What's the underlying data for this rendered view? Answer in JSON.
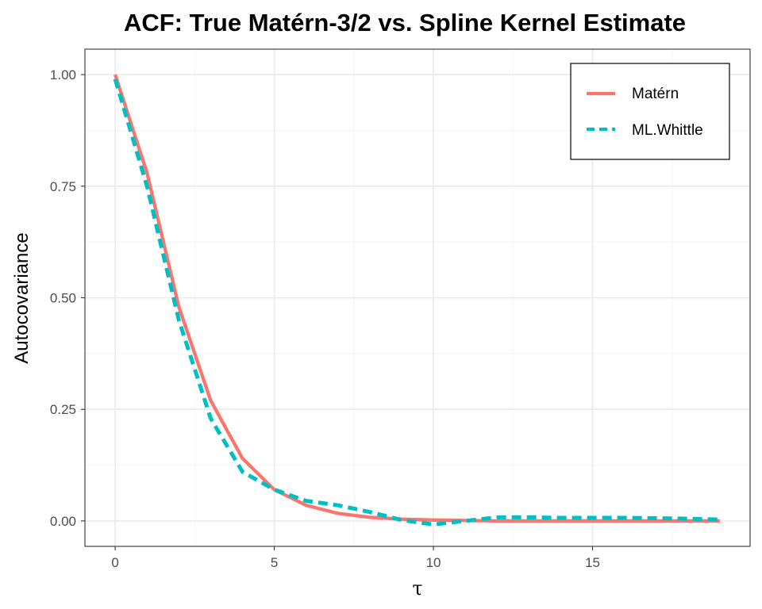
{
  "colors": {
    "matern": "#f8766d",
    "whittle": "#00bfc4",
    "grid_major": "#ebebeb",
    "grid_minor": "#f5f5f5",
    "panel_border": "#333333"
  },
  "chart_data": {
    "type": "line",
    "title": "ACF: True Matérn-3/2 vs. Spline Kernel Estimate",
    "xlabel": "τ",
    "ylabel": "Autocovariance",
    "xlim": [
      -0.95,
      19.95
    ],
    "ylim": [
      -0.057,
      1.057
    ],
    "x_ticks": [
      0,
      5,
      10,
      15
    ],
    "x_tick_labels": [
      "0",
      "5",
      "10",
      "15"
    ],
    "y_ticks": [
      0,
      0.25,
      0.5,
      0.75,
      1.0
    ],
    "y_tick_labels": [
      "0.00",
      "0.25",
      "0.50",
      "0.75",
      "1.00"
    ],
    "grid": true,
    "legend_position": "top-right",
    "x": [
      0,
      1,
      2,
      3,
      4,
      5,
      6,
      7,
      8,
      9,
      10,
      11,
      12,
      13,
      14,
      15,
      16,
      17,
      18,
      19
    ],
    "series": [
      {
        "name": "Matérn",
        "style": "solid",
        "color": "#f8766d",
        "values": [
          1.0,
          0.78,
          0.48,
          0.27,
          0.14,
          0.07,
          0.035,
          0.017,
          0.008,
          0.004,
          0.002,
          0.001,
          0.0,
          0.0,
          0.0,
          0.0,
          0.0,
          0.0,
          0.0,
          0.0
        ]
      },
      {
        "name": "ML.Whittle",
        "style": "dashed",
        "color": "#00bfc4",
        "values": [
          0.99,
          0.75,
          0.45,
          0.23,
          0.11,
          0.07,
          0.045,
          0.035,
          0.02,
          0.002,
          -0.008,
          0.0,
          0.008,
          0.008,
          0.007,
          0.007,
          0.007,
          0.006,
          0.005,
          0.003
        ]
      }
    ]
  }
}
